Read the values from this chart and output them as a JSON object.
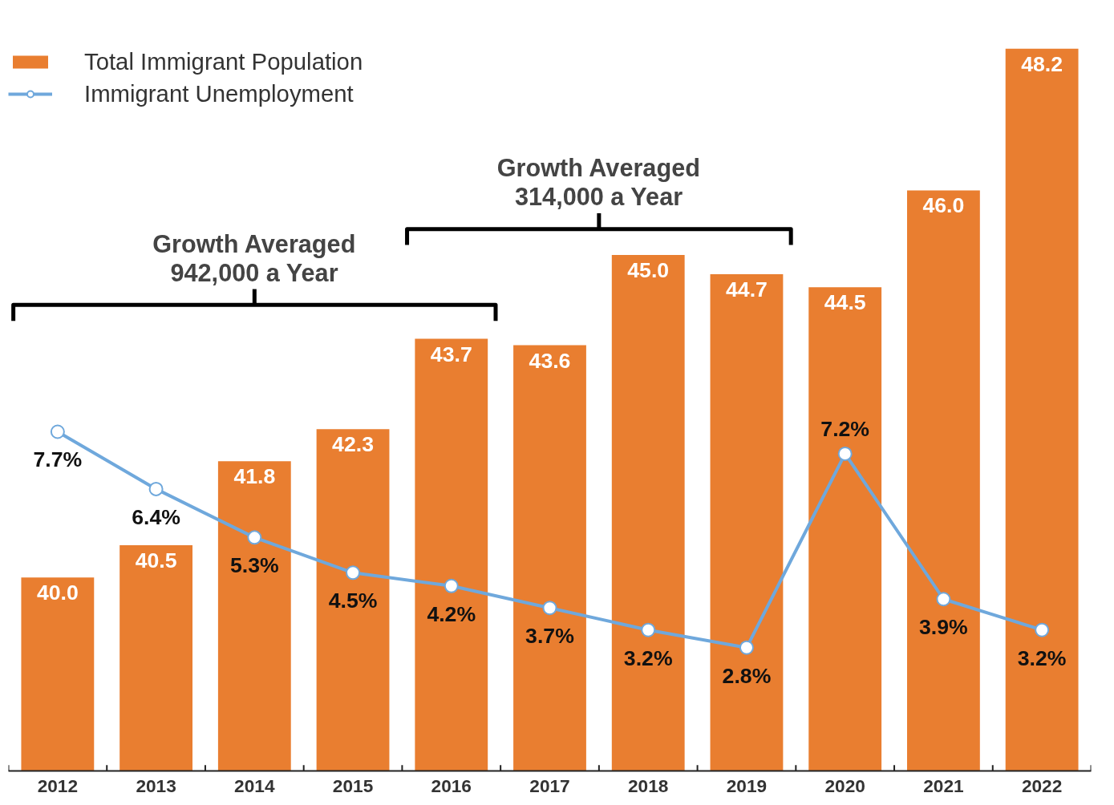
{
  "chart_data": {
    "type": "bar",
    "categories": [
      "2012",
      "2013",
      "2014",
      "2015",
      "2016",
      "2017",
      "2018",
      "2019",
      "2020",
      "2021",
      "2022"
    ],
    "series": [
      {
        "name": "Total Immigrant Population",
        "color": "#e97e30",
        "values": [
          40.0,
          40.5,
          41.8,
          42.3,
          43.7,
          43.6,
          45.0,
          44.7,
          44.5,
          46.0,
          48.2
        ],
        "value_labels": [
          "40.0",
          "40.5",
          "41.8",
          "42.3",
          "43.7",
          "43.6",
          "45.0",
          "44.7",
          "44.5",
          "46.0",
          "48.2"
        ]
      },
      {
        "name": "Immigrant Unemployment",
        "type": "line",
        "axis": "y2",
        "color": "#6fa8dc",
        "marker": "circle",
        "values": [
          7.7,
          6.4,
          5.3,
          4.5,
          4.2,
          3.7,
          3.2,
          2.8,
          7.2,
          3.9,
          3.2
        ],
        "value_labels": [
          "7.7%",
          "6.4%",
          "5.3%",
          "4.5%",
          "4.2%",
          "3.7%",
          "3.2%",
          "2.8%",
          "7.2%",
          "3.9%",
          "3.2%"
        ]
      }
    ],
    "ylim": [
      37,
      48.2
    ],
    "tick_labels": "x",
    "legend": "top left",
    "annotations": [
      "Growth Averaged\n942,000 a Year",
      "Growth Averaged\n314,000 a Year"
    ]
  }
}
